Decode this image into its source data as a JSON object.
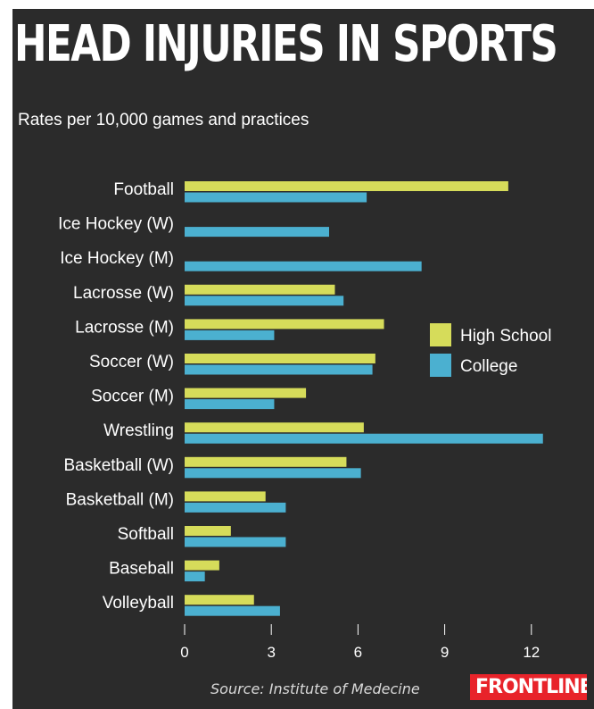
{
  "title": "HEAD INJURIES IN SPORTS",
  "subtitle": "Rates per 10,000 games and practices",
  "source": "Source: Institute of Medecine",
  "logo": "FRONTLINE",
  "colors": {
    "background": "#2b2b2b",
    "high_school": "#d6dc5a",
    "college": "#4bb0d0",
    "text": "#ffffff"
  },
  "chart_data": {
    "type": "bar",
    "orientation": "horizontal",
    "categories": [
      "Football",
      "Ice Hockey (W)",
      "Ice Hockey (M)",
      "Lacrosse (W)",
      "Lacrosse (M)",
      "Soccer (W)",
      "Soccer (M)",
      "Wrestling",
      "Basketball (W)",
      "Basketball (M)",
      "Softball",
      "Baseball",
      "Volleyball"
    ],
    "series": [
      {
        "name": "High School",
        "color": "#d6dc5a",
        "values": [
          11.2,
          null,
          null,
          5.2,
          6.9,
          6.6,
          4.2,
          6.2,
          5.6,
          2.8,
          1.6,
          1.2,
          2.4
        ]
      },
      {
        "name": "College",
        "color": "#4bb0d0",
        "values": [
          6.3,
          5.0,
          8.2,
          5.5,
          3.1,
          6.5,
          3.1,
          12.4,
          6.1,
          3.5,
          3.5,
          0.7,
          3.3
        ]
      }
    ],
    "xlim": [
      0,
      12.6
    ],
    "xticks": [
      0,
      3,
      6,
      9,
      12
    ],
    "legend_position": "right",
    "grid": false
  }
}
